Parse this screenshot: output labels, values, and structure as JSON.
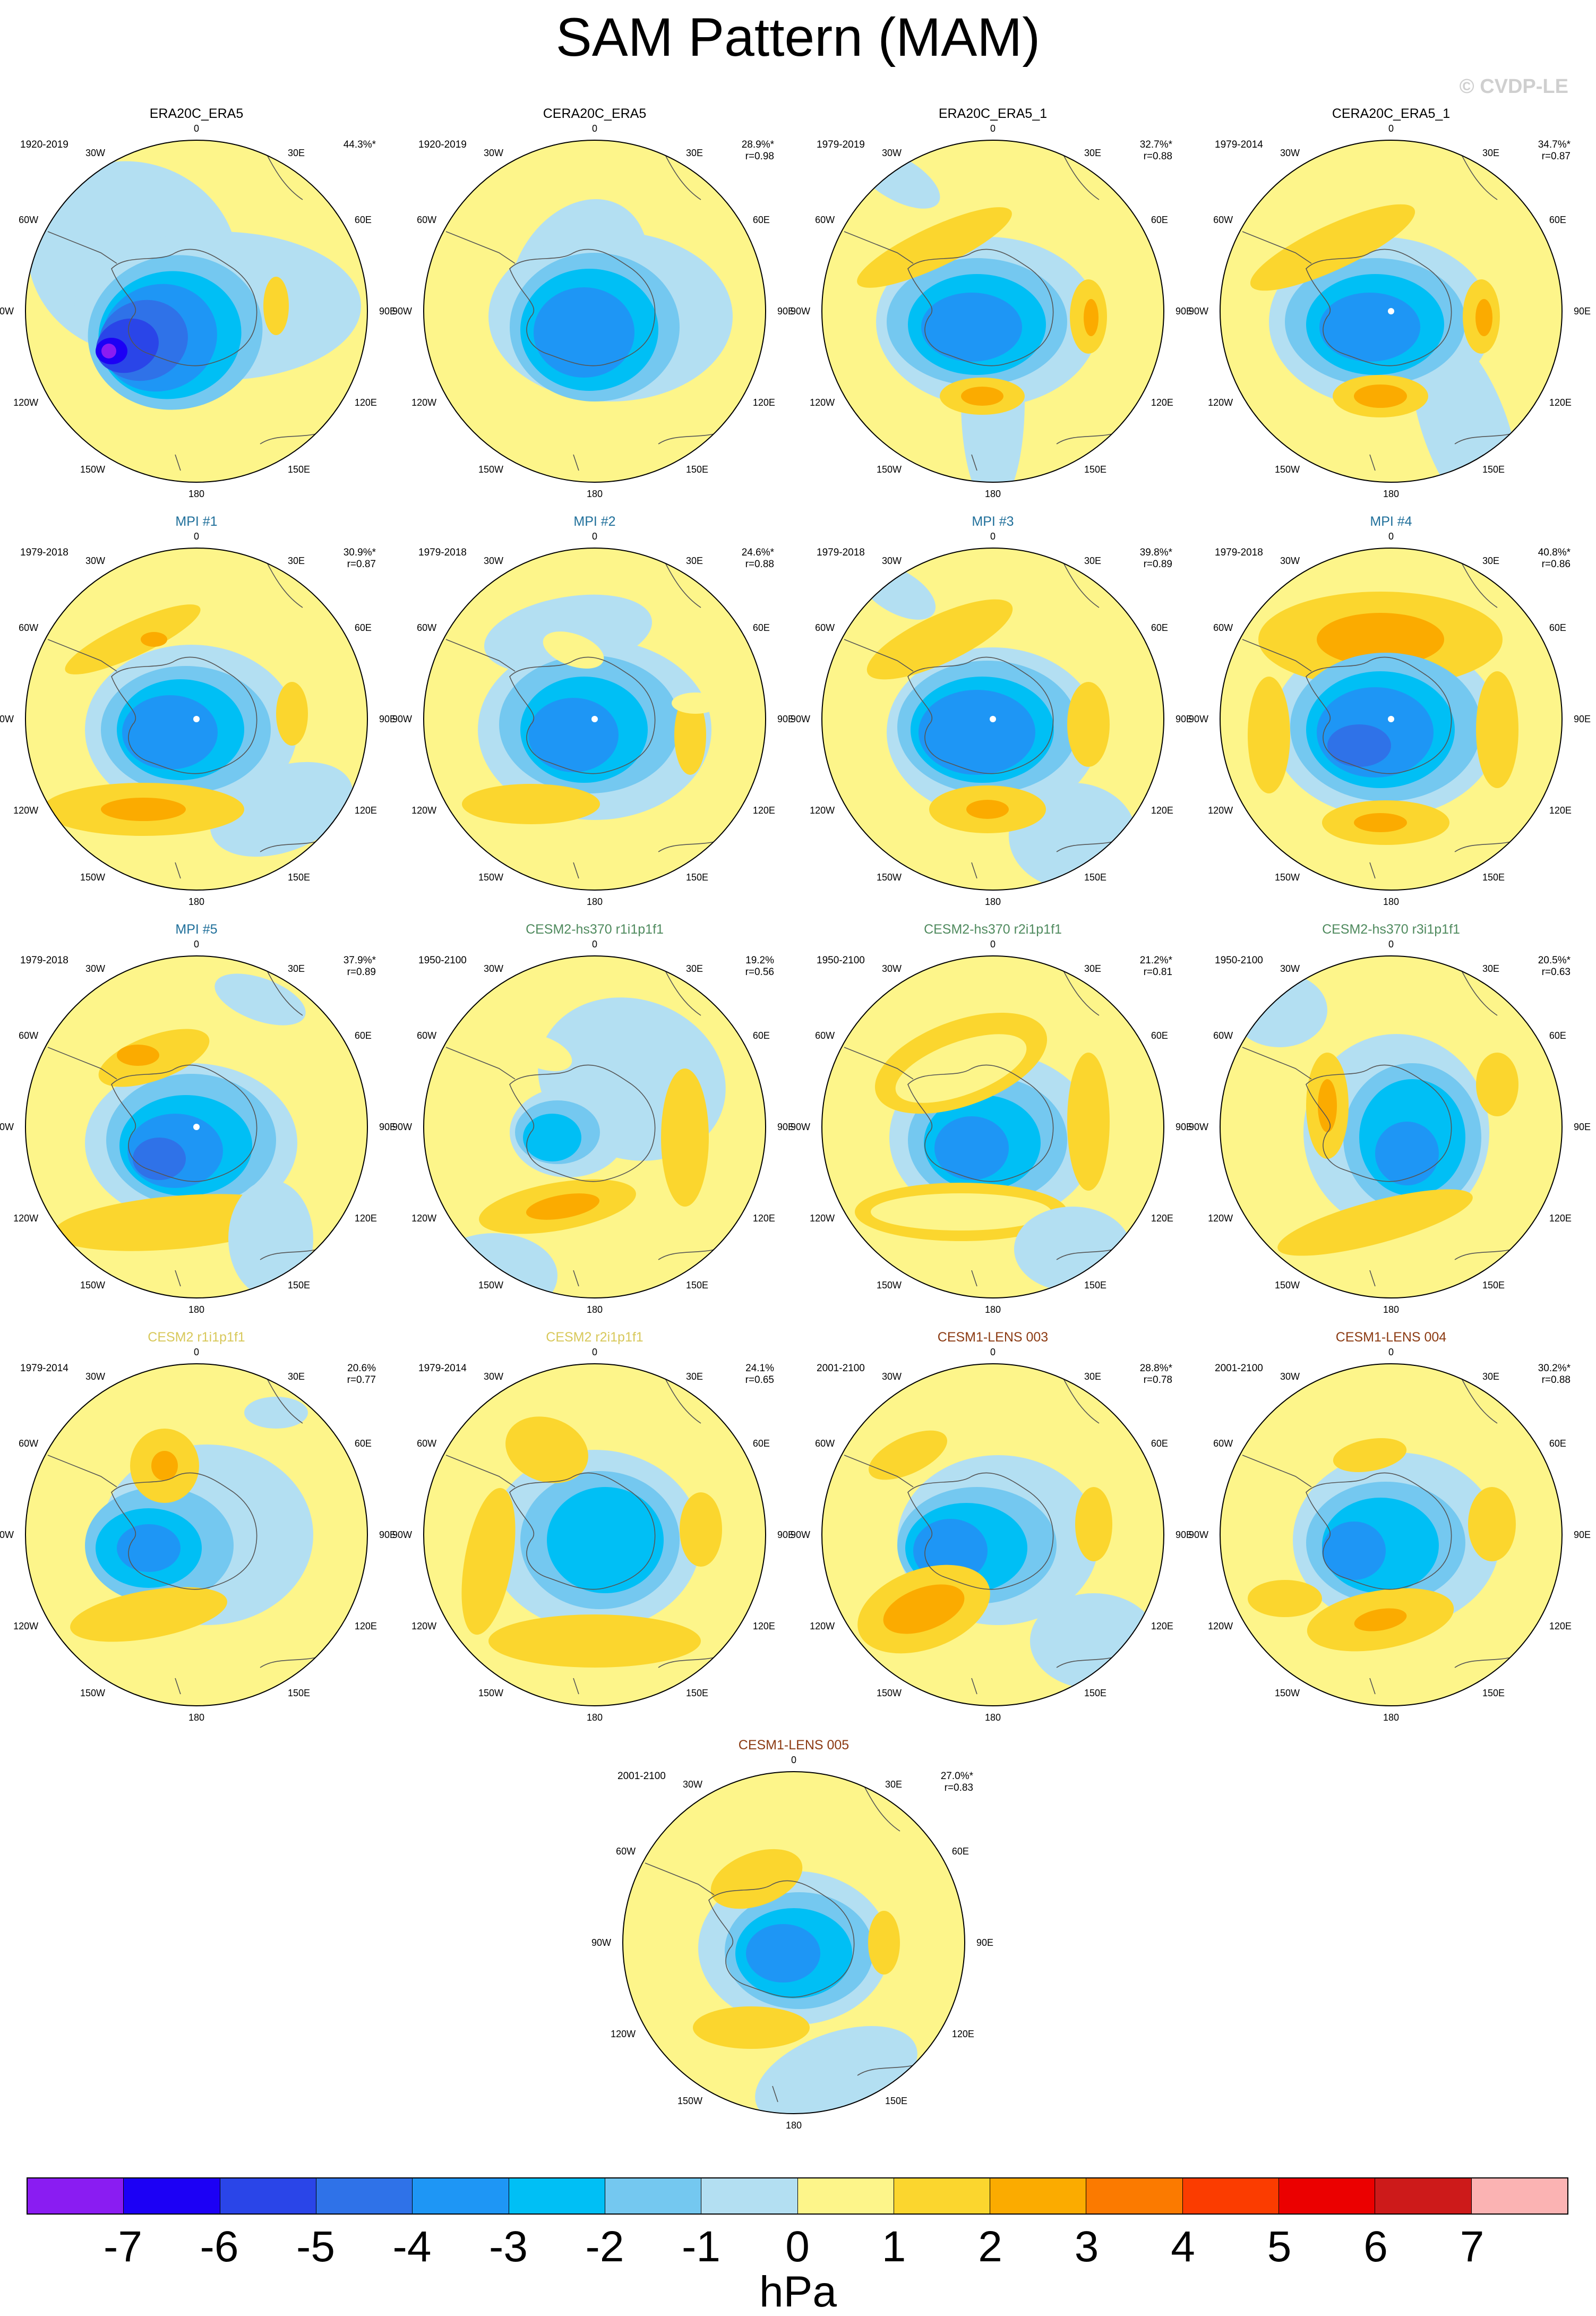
{
  "title": "SAM Pattern (MAM)",
  "watermark": "© CVDP-LE",
  "longitude_labels": [
    "0",
    "30E",
    "60E",
    "90E",
    "120E",
    "150E",
    "180",
    "150W",
    "120W",
    "90W",
    "60W",
    "30W"
  ],
  "panels": [
    {
      "title": "ERA20C_ERA5",
      "title_color": "#000000",
      "period": "1920-2019",
      "pct": "44.3%*",
      "r": ""
    },
    {
      "title": "CERA20C_ERA5",
      "title_color": "#000000",
      "period": "1920-2019",
      "pct": "28.9%*",
      "r": "r=0.98"
    },
    {
      "title": "ERA20C_ERA5_1",
      "title_color": "#000000",
      "period": "1979-2019",
      "pct": "32.7%*",
      "r": "r=0.88"
    },
    {
      "title": "CERA20C_ERA5_1",
      "title_color": "#000000",
      "period": "1979-2014",
      "pct": "34.7%*",
      "r": "r=0.87"
    },
    {
      "title": "MPI #1",
      "title_color": "#1f6f9a",
      "period": "1979-2018",
      "pct": "30.9%*",
      "r": "r=0.87"
    },
    {
      "title": "MPI #2",
      "title_color": "#1f6f9a",
      "period": "1979-2018",
      "pct": "24.6%*",
      "r": "r=0.88"
    },
    {
      "title": "MPI #3",
      "title_color": "#1f6f9a",
      "period": "1979-2018",
      "pct": "39.8%*",
      "r": "r=0.89"
    },
    {
      "title": "MPI #4",
      "title_color": "#1f6f9a",
      "period": "1979-2018",
      "pct": "40.8%*",
      "r": "r=0.86"
    },
    {
      "title": "MPI #5",
      "title_color": "#1f6f9a",
      "period": "1979-2018",
      "pct": "37.9%*",
      "r": "r=0.89"
    },
    {
      "title": "CESM2-hs370 r1i1p1f1",
      "title_color": "#4f8a5e",
      "period": "1950-2100",
      "pct": "19.2%",
      "r": "r=0.56"
    },
    {
      "title": "CESM2-hs370 r2i1p1f1",
      "title_color": "#4f8a5e",
      "period": "1950-2100",
      "pct": "21.2%*",
      "r": "r=0.81"
    },
    {
      "title": "CESM2-hs370 r3i1p1f1",
      "title_color": "#4f8a5e",
      "period": "1950-2100",
      "pct": "20.5%*",
      "r": "r=0.63"
    },
    {
      "title": "CESM2 r1i1p1f1",
      "title_color": "#d8c85a",
      "period": "1979-2014",
      "pct": "20.6%",
      "r": "r=0.77"
    },
    {
      "title": "CESM2 r2i1p1f1",
      "title_color": "#d8c85a",
      "period": "1979-2014",
      "pct": "24.1%",
      "r": "r=0.65"
    },
    {
      "title": "CESM1-LENS 003",
      "title_color": "#8b3a12",
      "period": "2001-2100",
      "pct": "28.8%*",
      "r": "r=0.78"
    },
    {
      "title": "CESM1-LENS 004",
      "title_color": "#8b3a12",
      "period": "2001-2100",
      "pct": "30.2%*",
      "r": "r=0.88"
    },
    {
      "title": "CESM1-LENS 005",
      "title_color": "#8b3a12",
      "period": "2001-2100",
      "pct": "27.0%*",
      "r": "r=0.83"
    }
  ],
  "colorbar": {
    "units": "hPa",
    "labels": [
      "-7",
      "-6",
      "-5",
      "-4",
      "-3",
      "-2",
      "-1",
      "0",
      "1",
      "2",
      "3",
      "4",
      "5",
      "6",
      "7"
    ],
    "colors": [
      "#8a1cf2",
      "#1c00f5",
      "#2a45e8",
      "#2f72e8",
      "#1e96f5",
      "#00bff5",
      "#74c8f0",
      "#b3dff2",
      "#fdf58a",
      "#fbd62e",
      "#fbab00",
      "#fb7a00",
      "#fb3c00",
      "#eb0000",
      "#cd1a1a",
      "#fbb3b3"
    ]
  }
}
